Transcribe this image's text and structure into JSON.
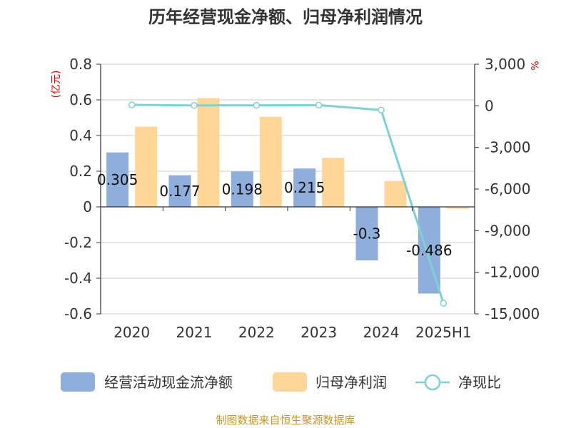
{
  "chart_data": {
    "type": "bar",
    "title": "历年经营现金净额、归母净利润情况",
    "left_unit": "(亿元)",
    "right_unit": "%",
    "categories": [
      "2020",
      "2021",
      "2022",
      "2023",
      "2024",
      "2025H1"
    ],
    "series": [
      {
        "name": "经营活动现金流净额",
        "type": "bar",
        "axis": "left",
        "color": "#8eaedb",
        "values": [
          0.305,
          0.177,
          0.198,
          0.215,
          -0.3,
          -0.486
        ],
        "labels": [
          "0.305",
          "0.177",
          "0.198",
          "0.215",
          "-0.3",
          "-0.486"
        ]
      },
      {
        "name": "归母净利润",
        "type": "bar",
        "axis": "left",
        "color": "#fdd698",
        "values": [
          0.45,
          0.61,
          0.505,
          0.275,
          0.145,
          -0.01
        ]
      },
      {
        "name": "净现比",
        "type": "line",
        "axis": "right",
        "color": "#7fd1d4",
        "values": [
          68,
          29,
          39,
          49,
          -304,
          -14230
        ]
      }
    ],
    "left_axis": {
      "min": -0.6,
      "max": 0.8,
      "ticks": [
        "-0.6",
        "-0.4",
        "-0.2",
        "0",
        "0.2",
        "0.4",
        "0.6",
        "0.8"
      ]
    },
    "right_axis": {
      "min": -15000,
      "max": 3000,
      "ticks": [
        "-15,000",
        "-12,000",
        "-9,000",
        "-6,000",
        "-3,000",
        "0",
        "3,000"
      ]
    },
    "grid": true,
    "legend_position": "bottom"
  },
  "source": "制图数据来自恒生聚源数据库"
}
